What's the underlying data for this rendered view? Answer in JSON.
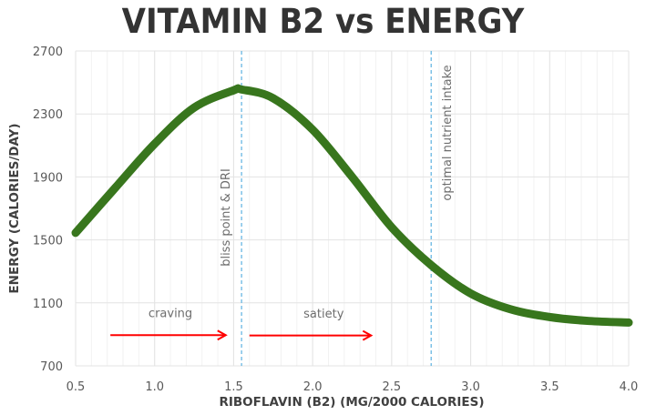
{
  "chart_data": {
    "type": "line",
    "title": "VITAMIN B2 vs ENERGY",
    "xlabel": "RIBOFLAVIN (B2) (MG/2000 CALORIES)",
    "ylabel": "ENERGY (CALORIES/DAY)",
    "xlim": [
      0.5,
      4.0
    ],
    "ylim": [
      700,
      2700
    ],
    "x_ticks": [
      0.5,
      1.0,
      1.5,
      2.0,
      2.5,
      3.0,
      3.5,
      4.0
    ],
    "x_tick_labels": [
      "0.5",
      "1.0",
      "1.5",
      "2.0",
      "2.5",
      "3.0",
      "3.5",
      "4.0"
    ],
    "y_ticks": [
      700,
      1100,
      1500,
      1900,
      2300,
      2700
    ],
    "y_tick_labels": [
      "700",
      "1100",
      "1500",
      "1900",
      "2300",
      "2700"
    ],
    "x_minor_step": 0.1,
    "grid": true,
    "legend": "none",
    "series": [
      {
        "name": "energy",
        "color": "#38761d",
        "x": [
          0.5,
          0.75,
          1.0,
          1.25,
          1.5,
          1.55,
          1.75,
          2.0,
          2.25,
          2.5,
          2.75,
          3.0,
          3.25,
          3.5,
          3.75,
          4.0
        ],
        "y": [
          1545,
          1830,
          2110,
          2340,
          2450,
          2455,
          2400,
          2200,
          1900,
          1580,
          1340,
          1160,
          1060,
          1010,
          985,
          975
        ]
      }
    ],
    "reference_lines": [
      {
        "x": 1.55,
        "label": "bliss point & DRI",
        "color": "#5bb1e0",
        "style": "dashed"
      },
      {
        "x": 2.75,
        "label": "optimal nutrient intake",
        "color": "#5bb1e0",
        "style": "dashed"
      }
    ],
    "annotations": [
      {
        "text": "craving",
        "x": 1.1,
        "y": 1010
      },
      {
        "text": "satiety",
        "x": 2.07,
        "y": 1005
      }
    ],
    "arrows": [
      {
        "from": [
          0.72,
          895
        ],
        "to": [
          1.45,
          895
        ],
        "color": "#ff0000"
      },
      {
        "from": [
          1.6,
          893
        ],
        "to": [
          2.37,
          893
        ],
        "color": "#ff0000"
      }
    ]
  }
}
